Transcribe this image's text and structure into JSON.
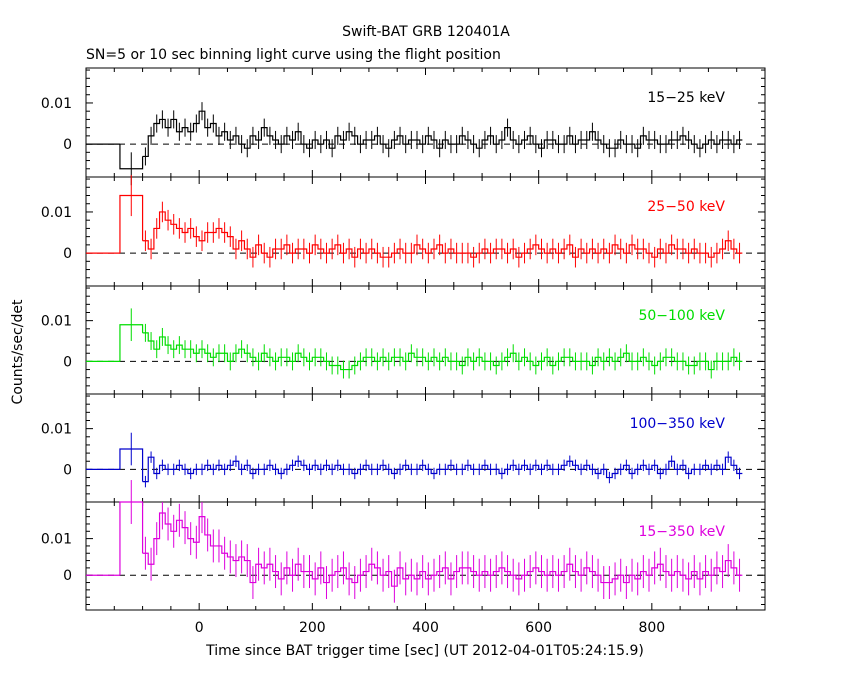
{
  "title": "Swift-BAT GRB 120401A",
  "subtitle": "SN=5 or 10 sec binning light curve using the flight position",
  "xlabel": "Time since BAT trigger time [sec] (UT 2012-04-01T05:24:15.9)",
  "ylabel": "Counts/sec/det",
  "chart_data": {
    "type": "line",
    "title": "Swift-BAT GRB 120401A",
    "subtitle": "SN=5 or 10 sec binning light curve using the flight position",
    "xlabel": "Time since BAT trigger time [sec] (UT 2012-04-01T05:24:15.9)",
    "ylabel": "Counts/sec/det",
    "xlim": [
      -200,
      1000
    ],
    "xticks": [
      0,
      200,
      400,
      600,
      800
    ],
    "yticks": [
      0,
      0.01
    ],
    "step": "histogram with error bars",
    "panels": [
      {
        "name": "15-25 keV",
        "label": "15−25 keV",
        "color": "#000000",
        "ylim": [
          -0.008,
          0.0185
        ],
        "pre_bins": [
          {
            "x0": -140,
            "x1": -100,
            "y": -0.006,
            "err": 0.004
          }
        ],
        "x": [
          -95,
          -85,
          -75,
          -65,
          -55,
          -45,
          -35,
          -25,
          -15,
          -5,
          5,
          15,
          25,
          35,
          45,
          55,
          65,
          75,
          85,
          95,
          105,
          115,
          125,
          135,
          145,
          155,
          165,
          175,
          185,
          195,
          205,
          215,
          225,
          235,
          245,
          255,
          265,
          275,
          285,
          295,
          305,
          315,
          325,
          335,
          345,
          355,
          365,
          375,
          385,
          395,
          405,
          415,
          425,
          435,
          445,
          455,
          465,
          475,
          485,
          495,
          505,
          515,
          525,
          535,
          545,
          555,
          565,
          575,
          585,
          595,
          605,
          615,
          625,
          635,
          645,
          655,
          665,
          675,
          685,
          695,
          705,
          715,
          725,
          735,
          745,
          755,
          765,
          775,
          785,
          795,
          805,
          815,
          825,
          835,
          845,
          855,
          865,
          875,
          885,
          895,
          905,
          915,
          925,
          935,
          945,
          955
        ],
        "y": [
          -0.003,
          0.002,
          0.005,
          0.006,
          0.004,
          0.006,
          0.003,
          0.004,
          0.003,
          0.005,
          0.008,
          0.004,
          0.005,
          0.002,
          0.003,
          0.001,
          0.002,
          0.0,
          -0.001,
          0.002,
          0.001,
          0.004,
          0.002,
          0.001,
          0.0,
          0.002,
          0.001,
          0.003,
          0.0,
          -0.001,
          0.001,
          0.0,
          0.001,
          -0.001,
          0.002,
          0.001,
          0.003,
          0.002,
          0.0,
          0.001,
          0.001,
          0.002,
          0.0,
          -0.001,
          0.001,
          0.002,
          0.0,
          0.001,
          0.001,
          0.0,
          0.002,
          0.001,
          -0.001,
          0.001,
          0.0,
          0.0,
          0.002,
          0.001,
          0.0,
          -0.001,
          0.001,
          0.002,
          0.0,
          0.001,
          0.004,
          0.001,
          0.0,
          0.001,
          0.002,
          0.0,
          -0.001,
          0.001,
          0.001,
          0.0,
          0.0,
          0.002,
          0.0,
          0.001,
          0.001,
          0.003,
          0.001,
          0.0,
          -0.001,
          -0.001,
          0.001,
          0.0,
          0.0,
          -0.001,
          0.002,
          0.001,
          0.001,
          0.0,
          0.0,
          0.001,
          0.001,
          0.002,
          0.001,
          0.0,
          -0.001,
          0.0,
          0.001,
          0.0,
          0.001,
          0.001,
          0.0,
          0.001
        ],
        "err": 0.0022
      },
      {
        "name": "25-50 keV",
        "label": "25−50 keV",
        "color": "#ff0000",
        "ylim": [
          -0.008,
          0.0185
        ],
        "pre_bins": [
          {
            "x0": -140,
            "x1": -100,
            "y": 0.014,
            "err": 0.005
          }
        ],
        "x": [
          -95,
          -85,
          -75,
          -65,
          -55,
          -45,
          -35,
          -25,
          -15,
          -5,
          5,
          15,
          25,
          35,
          45,
          55,
          65,
          75,
          85,
          95,
          105,
          115,
          125,
          135,
          145,
          155,
          165,
          175,
          185,
          195,
          205,
          215,
          225,
          235,
          245,
          255,
          265,
          275,
          285,
          295,
          305,
          315,
          325,
          335,
          345,
          355,
          365,
          375,
          385,
          395,
          405,
          415,
          425,
          435,
          445,
          455,
          465,
          475,
          485,
          495,
          505,
          515,
          525,
          535,
          545,
          555,
          565,
          575,
          585,
          595,
          605,
          615,
          625,
          635,
          645,
          655,
          665,
          675,
          685,
          695,
          705,
          715,
          725,
          735,
          745,
          755,
          765,
          775,
          785,
          795,
          805,
          815,
          825,
          835,
          845,
          855,
          865,
          875,
          885,
          895,
          905,
          915,
          925,
          935,
          945,
          955
        ],
        "y": [
          0.003,
          0.001,
          0.006,
          0.01,
          0.008,
          0.007,
          0.006,
          0.005,
          0.006,
          0.004,
          0.003,
          0.005,
          0.005,
          0.006,
          0.005,
          0.004,
          0.001,
          0.003,
          0.001,
          -0.001,
          0.002,
          0.0,
          -0.001,
          0.001,
          0.001,
          0.002,
          0.0,
          0.001,
          0.001,
          0.0,
          0.002,
          0.001,
          0.0,
          0.001,
          0.002,
          0.0,
          0.001,
          -0.001,
          0.001,
          0.0,
          0.001,
          0.0,
          -0.001,
          -0.001,
          0.0,
          0.001,
          0.0,
          0.0,
          0.002,
          0.001,
          0.0,
          0.001,
          0.002,
          0.0,
          0.001,
          0.0,
          0.0,
          0.0,
          -0.001,
          0.0,
          0.001,
          0.0,
          0.001,
          0.001,
          0.0,
          0.001,
          -0.001,
          0.0,
          0.001,
          0.002,
          0.001,
          0.0,
          0.001,
          0.0,
          0.001,
          0.002,
          -0.001,
          0.001,
          0.0,
          0.001,
          0.0,
          0.001,
          0.0,
          0.002,
          0.001,
          0.0,
          0.002,
          0.001,
          0.001,
          0.0,
          -0.001,
          0.001,
          0.0,
          0.002,
          0.001,
          0.001,
          0.0,
          0.001,
          0.0,
          0.0,
          -0.001,
          0.0,
          0.001,
          0.003,
          0.001,
          0.0
        ],
        "err": 0.0025
      },
      {
        "name": "50-100 keV",
        "label": "50−100 keV",
        "color": "#00dd00",
        "ylim": [
          -0.008,
          0.0185
        ],
        "pre_bins": [
          {
            "x0": -140,
            "x1": -100,
            "y": 0.009,
            "err": 0.004
          }
        ],
        "x": [
          -95,
          -85,
          -75,
          -65,
          -55,
          -45,
          -35,
          -25,
          -15,
          -5,
          5,
          15,
          25,
          35,
          45,
          55,
          65,
          75,
          85,
          95,
          105,
          115,
          125,
          135,
          145,
          155,
          165,
          175,
          185,
          195,
          205,
          215,
          225,
          235,
          245,
          255,
          265,
          275,
          285,
          295,
          305,
          315,
          325,
          335,
          345,
          355,
          365,
          375,
          385,
          395,
          405,
          415,
          425,
          435,
          445,
          455,
          465,
          475,
          485,
          495,
          505,
          515,
          525,
          535,
          545,
          555,
          565,
          575,
          585,
          595,
          605,
          615,
          625,
          635,
          645,
          655,
          665,
          675,
          685,
          695,
          705,
          715,
          725,
          735,
          745,
          755,
          765,
          775,
          785,
          795,
          805,
          815,
          825,
          835,
          845,
          855,
          865,
          875,
          885,
          895,
          905,
          915,
          925,
          935,
          945,
          955
        ],
        "y": [
          0.007,
          0.005,
          0.003,
          0.006,
          0.004,
          0.003,
          0.004,
          0.003,
          0.003,
          0.002,
          0.003,
          0.002,
          0.001,
          0.002,
          0.002,
          0.0,
          0.002,
          0.003,
          0.002,
          0.001,
          0.0,
          0.002,
          0.001,
          0.0,
          0.001,
          0.001,
          0.0,
          0.002,
          0.001,
          0.0,
          0.001,
          0.001,
          0.0,
          -0.001,
          -0.001,
          -0.002,
          -0.002,
          -0.001,
          0.0,
          0.001,
          0.001,
          0.0,
          0.001,
          0.0,
          0.001,
          0.001,
          0.0,
          0.002,
          0.001,
          0.001,
          0.0,
          0.001,
          0.0,
          0.001,
          0.0,
          0.0,
          -0.001,
          0.001,
          0.0,
          0.001,
          0.0,
          0.0,
          -0.001,
          0.0,
          0.001,
          0.002,
          0.0,
          0.001,
          0.0,
          -0.001,
          0.0,
          0.001,
          -0.001,
          0.0,
          0.001,
          0.001,
          0.0,
          0.0,
          0.0,
          -0.001,
          0.001,
          0.0,
          0.001,
          0.0,
          0.001,
          0.002,
          0.0,
          0.0,
          0.001,
          0.0,
          -0.001,
          0.0,
          0.001,
          0.001,
          0.0,
          0.0,
          -0.001,
          -0.001,
          0.0,
          0.0,
          -0.002,
          0.0,
          0.0,
          0.0,
          0.001,
          0.0
        ],
        "err": 0.0022
      },
      {
        "name": "100-350 keV",
        "label": "100−350 keV",
        "color": "#0000cc",
        "ylim": [
          -0.008,
          0.0185
        ],
        "pre_bins": [
          {
            "x0": -140,
            "x1": -100,
            "y": 0.005,
            "err": 0.004
          }
        ],
        "x": [
          -95,
          -85,
          -75,
          -65,
          -55,
          -45,
          -35,
          -25,
          -15,
          -5,
          5,
          15,
          25,
          35,
          45,
          55,
          65,
          75,
          85,
          95,
          105,
          115,
          125,
          135,
          145,
          155,
          165,
          175,
          185,
          195,
          205,
          215,
          225,
          235,
          245,
          255,
          265,
          275,
          285,
          295,
          305,
          315,
          325,
          335,
          345,
          355,
          365,
          375,
          385,
          395,
          405,
          415,
          425,
          435,
          445,
          455,
          465,
          475,
          485,
          495,
          505,
          515,
          525,
          535,
          545,
          555,
          565,
          575,
          585,
          595,
          605,
          615,
          625,
          635,
          645,
          655,
          665,
          675,
          685,
          695,
          705,
          715,
          725,
          735,
          745,
          755,
          765,
          775,
          785,
          795,
          805,
          815,
          825,
          835,
          845,
          855,
          865,
          875,
          885,
          895,
          905,
          915,
          925,
          935,
          945,
          955
        ],
        "y": [
          -0.003,
          0.003,
          -0.001,
          0.001,
          0.0,
          0.0,
          0.001,
          0.0,
          -0.001,
          0.0,
          0.0,
          0.001,
          0.0,
          0.001,
          0.0,
          0.001,
          0.002,
          0.0,
          0.001,
          -0.001,
          0.0,
          0.0,
          0.001,
          0.0,
          -0.001,
          0.0,
          0.001,
          0.002,
          0.001,
          0.0,
          0.001,
          0.0,
          0.001,
          0.0,
          0.001,
          0.0,
          0.0,
          -0.001,
          0.0,
          0.001,
          0.0,
          0.0,
          0.001,
          0.0,
          -0.001,
          0.0,
          0.001,
          0.0,
          0.0,
          0.001,
          0.0,
          -0.001,
          0.0,
          0.0,
          0.001,
          0.0,
          0.0,
          0.001,
          0.0,
          0.0,
          0.001,
          0.0,
          0.0,
          -0.001,
          0.0,
          0.001,
          0.0,
          0.001,
          0.0,
          0.001,
          0.0,
          0.001,
          0.0,
          0.0,
          0.001,
          0.002,
          0.001,
          0.0,
          0.001,
          0.0,
          -0.001,
          0.0,
          -0.002,
          -0.001,
          0.0,
          0.001,
          -0.001,
          0.0,
          0.001,
          0.0,
          0.001,
          -0.001,
          0.0,
          0.002,
          0.0,
          0.001,
          -0.001,
          0.0,
          0.0,
          0.001,
          0.0,
          0.001,
          0.0,
          0.003,
          0.001,
          -0.001
        ],
        "err": 0.0014
      },
      {
        "name": "15-350 keV",
        "label": "15−350 keV",
        "color": "#dd00dd",
        "ylim": [
          -0.0095,
          0.02
        ],
        "pre_bins": [
          {
            "x0": -140,
            "x1": -100,
            "y": 0.02,
            "err": 0.006
          }
        ],
        "x": [
          -95,
          -85,
          -75,
          -65,
          -55,
          -45,
          -35,
          -25,
          -15,
          -5,
          5,
          15,
          25,
          35,
          45,
          55,
          65,
          75,
          85,
          95,
          105,
          115,
          125,
          135,
          145,
          155,
          165,
          175,
          185,
          195,
          205,
          215,
          225,
          235,
          245,
          255,
          265,
          275,
          285,
          295,
          305,
          315,
          325,
          335,
          345,
          355,
          365,
          375,
          385,
          395,
          405,
          415,
          425,
          435,
          445,
          455,
          465,
          475,
          485,
          495,
          505,
          515,
          525,
          535,
          545,
          555,
          565,
          575,
          585,
          595,
          605,
          615,
          625,
          635,
          645,
          655,
          665,
          675,
          685,
          695,
          705,
          715,
          725,
          735,
          745,
          755,
          765,
          775,
          785,
          795,
          805,
          815,
          825,
          835,
          845,
          855,
          865,
          875,
          885,
          895,
          905,
          915,
          925,
          935,
          945,
          955
        ],
        "y": [
          0.006,
          0.003,
          0.01,
          0.017,
          0.014,
          0.012,
          0.015,
          0.013,
          0.01,
          0.009,
          0.016,
          0.011,
          0.008,
          0.008,
          0.006,
          0.005,
          0.004,
          0.005,
          0.004,
          -0.002,
          0.003,
          0.002,
          0.003,
          0.001,
          -0.001,
          0.002,
          0.0,
          0.003,
          0.001,
          0.001,
          -0.001,
          0.002,
          -0.002,
          0.0,
          0.001,
          0.002,
          -0.001,
          -0.002,
          0.0,
          0.001,
          0.003,
          0.002,
          0.0,
          0.001,
          -0.003,
          0.002,
          -0.001,
          0.0,
          -0.001,
          0.001,
          -0.001,
          0.0,
          0.001,
          0.002,
          -0.001,
          0.001,
          0.002,
          0.002,
          0.001,
          0.0,
          0.001,
          0.0,
          0.001,
          0.002,
          0.001,
          0.0,
          -0.001,
          0.0,
          0.001,
          0.002,
          0.001,
          0.0,
          0.001,
          0.0,
          0.001,
          0.003,
          0.001,
          0.0,
          0.002,
          0.001,
          0.0,
          -0.002,
          -0.002,
          -0.001,
          0.0,
          -0.002,
          0.0,
          -0.001,
          0.001,
          0.0,
          0.002,
          0.003,
          0.001,
          0.0,
          0.001,
          0.0,
          -0.001,
          0.001,
          -0.001,
          0.001,
          0.0,
          0.002,
          0.001,
          0.004,
          0.002,
          0.0
        ],
        "err": 0.0045
      }
    ]
  }
}
